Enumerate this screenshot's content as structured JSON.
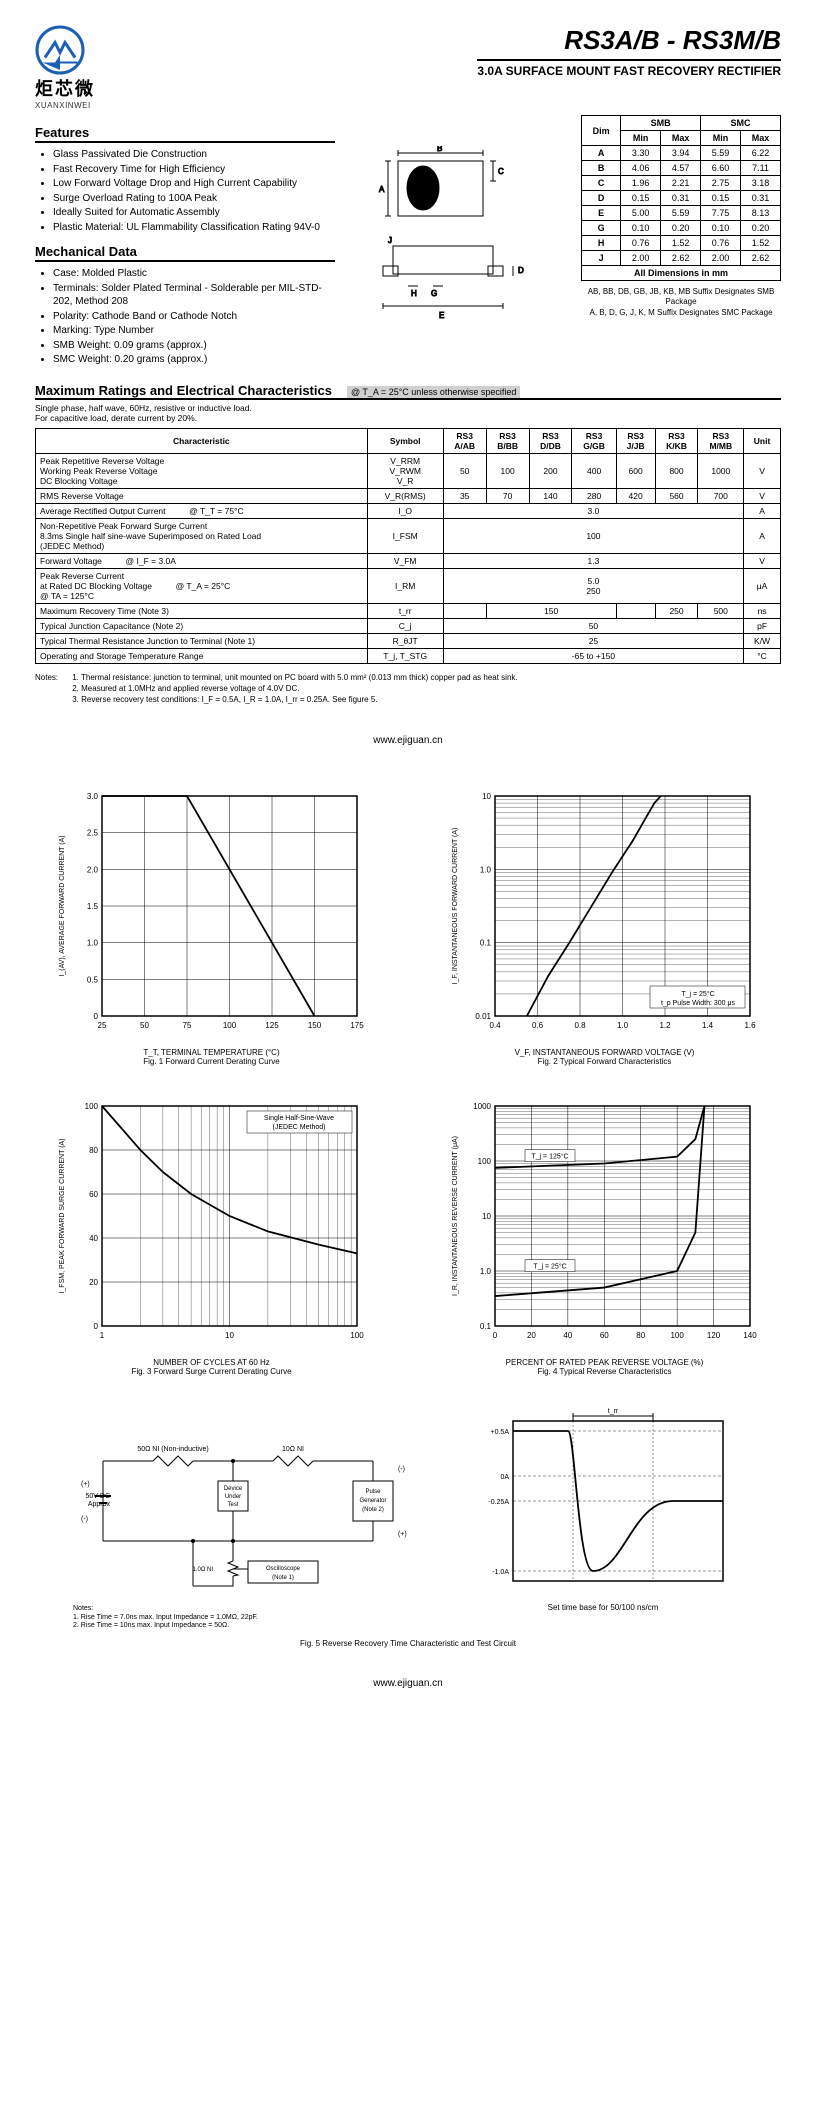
{
  "header": {
    "brand_cn": "炬芯微",
    "brand_en": "XUANXINWEI",
    "part_title": "RS3A/B - RS3M/B",
    "subtitle": "3.0A SURFACE MOUNT FAST RECOVERY RECTIFIER"
  },
  "features": {
    "heading": "Features",
    "items": [
      "Glass Passivated Die Construction",
      "Fast Recovery Time for High Efficiency",
      "Low Forward Voltage Drop and High Current Capability",
      "Surge Overload Rating to 100A Peak",
      "Ideally Suited for Automatic Assembly",
      "Plastic Material: UL Flammability Classification Rating 94V-0"
    ]
  },
  "mechanical": {
    "heading": "Mechanical Data",
    "items": [
      "Case: Molded Plastic",
      "Terminals: Solder Plated Terminal - Solderable per MIL-STD-202, Method 208",
      "Polarity: Cathode Band or Cathode Notch",
      "Marking: Type Number",
      "SMB Weight: 0.09 grams (approx.)",
      "SMC Weight: 0.20 grams (approx.)"
    ]
  },
  "dims": {
    "head_smb": "SMB",
    "head_smc": "SMC",
    "head_dim": "Dim",
    "head_min": "Min",
    "head_max": "Max",
    "rows": [
      {
        "d": "A",
        "a": "3.30",
        "b": "3.94",
        "c": "5.59",
        "e": "6.22"
      },
      {
        "d": "B",
        "a": "4.06",
        "b": "4.57",
        "c": "6.60",
        "e": "7.11"
      },
      {
        "d": "C",
        "a": "1.96",
        "b": "2.21",
        "c": "2.75",
        "e": "3.18"
      },
      {
        "d": "D",
        "a": "0.15",
        "b": "0.31",
        "c": "0.15",
        "e": "0.31"
      },
      {
        "d": "E",
        "a": "5.00",
        "b": "5.59",
        "c": "7.75",
        "e": "8.13"
      },
      {
        "d": "G",
        "a": "0.10",
        "b": "0.20",
        "c": "0.10",
        "e": "0.20"
      },
      {
        "d": "H",
        "a": "0.76",
        "b": "1.52",
        "c": "0.76",
        "e": "1.52"
      },
      {
        "d": "J",
        "a": "2.00",
        "b": "2.62",
        "c": "2.00",
        "e": "2.62"
      }
    ],
    "footer": "All Dimensions in mm"
  },
  "pkg_note_1": "AB, BB, DB, GB, JB, KB, MB Suffix Designates SMB Package",
  "pkg_note_2": "A, B, D, G, J, K, M Suffix Designates SMC Package",
  "maxratings": {
    "heading": "Maximum Ratings and Electrical Characteristics",
    "cond": "@ T_A = 25°C unless otherwise specified",
    "note": "Single phase, half wave, 60Hz, resistive or inductive load.\nFor capacitive load, derate current by 20%.",
    "headers": [
      "Characteristic",
      "Symbol",
      "RS3 A/AB",
      "RS3 B/BB",
      "RS3 D/DB",
      "RS3 G/GB",
      "RS3 J/JB",
      "RS3 K/KB",
      "RS3 M/MB",
      "Unit"
    ]
  },
  "char_rows": {
    "r1_l": "Peak Repetitive Reverse Voltage\nWorking Peak Reverse Voltage\nDC Blocking Voltage",
    "r1_s": "V_RRM\nV_RWM\nV_R",
    "r1": [
      "50",
      "100",
      "200",
      "400",
      "600",
      "800",
      "1000"
    ],
    "r1_u": "V",
    "r2_l": "RMS Reverse Voltage",
    "r2_s": "V_R(RMS)",
    "r2": [
      "35",
      "70",
      "140",
      "280",
      "420",
      "560",
      "700"
    ],
    "r2_u": "V",
    "r3_l": "Average Rectified Output Current",
    "r3_c": "@ T_T = 75°C",
    "r3_s": "I_O",
    "r3_v": "3.0",
    "r3_u": "A",
    "r4_l": "Non-Repetitive Peak Forward Surge Current\n8.3ms Single half sine-wave Superimposed on Rated Load\n(JEDEC Method)",
    "r4_s": "I_FSM",
    "r4_v": "100",
    "r4_u": "A",
    "r5_l": "Forward Voltage",
    "r5_c": "@ I_F = 3.0A",
    "r5_s": "V_FM",
    "r5_v": "1.3",
    "r5_u": "V",
    "r6_l": "Peak Reverse Current\nat Rated DC Blocking Voltage",
    "r6_c": "@ T_A = 25°C\n@ TA = 125°C",
    "r6_s": "I_RM",
    "r6_v": "5.0\n250",
    "r6_u": "μA",
    "r7_l": "Maximum Recovery Time (Note 3)",
    "r7_s": "t_rr",
    "r7": [
      "",
      "150",
      "",
      "",
      "250",
      "500"
    ],
    "r7_u": "ns",
    "r8_l": "Typical Junction Capacitance (Note 2)",
    "r8_s": "C_j",
    "r8_v": "50",
    "r8_u": "pF",
    "r9_l": "Typical Thermal Resistance Junction to Terminal (Note 1)",
    "r9_s": "R_θJT",
    "r9_v": "25",
    "r9_u": "K/W",
    "r10_l": "Operating and Storage Temperature Range",
    "r10_s": "T_j, T_STG",
    "r10_v": "-65 to +150",
    "r10_u": "°C"
  },
  "notes": {
    "label": "Notes:",
    "n1": "1. Thermal resistance: junction to terminal, unit mounted on PC board with 5.0 mm² (0.013 mm thick) copper pad as heat sink.",
    "n2": "2. Measured at 1.0MHz and applied reverse voltage of 4.0V DC.",
    "n3": "3. Reverse recovery test conditions: I_F = 0.5A, I_R = 1.0A, I_rr = 0.25A. See figure 5."
  },
  "url": "www.ejiguan.cn",
  "charts": {
    "fig1": {
      "xlabel": "T_T, TERMINAL TEMPERATURE (°C)",
      "caption": "Fig. 1  Forward Current Derating Curve",
      "ylabel": "I_(AV), AVERAGE FORWARD CURRENT (A)",
      "xticks": [
        "25",
        "50",
        "75",
        "100",
        "125",
        "150",
        "175"
      ],
      "yticks": [
        "0",
        "0.5",
        "1.0",
        "1.5",
        "2.0",
        "2.5",
        "3.0"
      ],
      "line": [
        [
          25,
          3.0
        ],
        [
          75,
          3.0
        ],
        [
          150,
          0
        ]
      ],
      "xlim": [
        25,
        175
      ],
      "ylim": [
        0,
        3.0
      ]
    },
    "fig2": {
      "xlabel": "V_F, INSTANTANEOUS FORWARD VOLTAGE (V)",
      "caption": "Fig. 2  Typical Forward Characteristics",
      "ylabel": "I_F, INSTANTANEOUS FORWARD CURRENT (A)",
      "xticks": [
        "0.4",
        "0.6",
        "0.8",
        "1.0",
        "1.2",
        "1.4",
        "1.6"
      ],
      "yticks": [
        "0.01",
        "0.1",
        "1.0",
        "10"
      ],
      "xlim": [
        0.4,
        1.6
      ],
      "ylim": [
        0.01,
        10
      ],
      "ylog": true,
      "line": [
        [
          0.55,
          0.01
        ],
        [
          0.65,
          0.035
        ],
        [
          0.75,
          0.1
        ],
        [
          0.85,
          0.3
        ],
        [
          0.95,
          0.9
        ],
        [
          1.05,
          2.5
        ],
        [
          1.1,
          4.5
        ],
        [
          1.15,
          8
        ],
        [
          1.18,
          10
        ]
      ],
      "ann1": "T_j = 25°C",
      "ann2": "t_p Pulse Width: 300 μs"
    },
    "fig3": {
      "xlabel": "NUMBER OF CYCLES AT 60 Hz",
      "caption": "Fig. 3  Forward Surge Current Derating Curve",
      "ylabel": "I_FSM, PEAK FORWARD SURGE CURRENT (A)",
      "xticks": [
        "1",
        "10",
        "100"
      ],
      "yticks": [
        "0",
        "20",
        "40",
        "60",
        "80",
        "100"
      ],
      "xlim": [
        1,
        100
      ],
      "ylim": [
        0,
        100
      ],
      "xlog": true,
      "line": [
        [
          1,
          100
        ],
        [
          2,
          80
        ],
        [
          3,
          70
        ],
        [
          5,
          60
        ],
        [
          10,
          50
        ],
        [
          20,
          43
        ],
        [
          50,
          37
        ],
        [
          100,
          33
        ]
      ],
      "ann": "Single Half-Sine-Wave\n(JEDEC Method)"
    },
    "fig4": {
      "xlabel": "PERCENT OF RATED PEAK REVERSE VOLTAGE (%)",
      "caption": "Fig. 4  Typical Reverse Characteristics",
      "ylabel": "I_R, INSTANTANEOUS REVERSE CURRENT (μA)",
      "xticks": [
        "0",
        "20",
        "40",
        "60",
        "80",
        "100",
        "120",
        "140"
      ],
      "yticks": [
        "0.1",
        "1.0",
        "10",
        "100",
        "1000"
      ],
      "xlim": [
        0,
        140
      ],
      "ylim": [
        0.1,
        1000
      ],
      "ylog": true,
      "line1": [
        [
          0,
          75
        ],
        [
          60,
          90
        ],
        [
          100,
          120
        ],
        [
          110,
          250
        ],
        [
          115,
          1000
        ]
      ],
      "line2": [
        [
          0,
          0.35
        ],
        [
          60,
          0.5
        ],
        [
          100,
          1.0
        ],
        [
          110,
          5
        ],
        [
          115,
          1000
        ]
      ],
      "ann1": "T_j = 125°C",
      "ann2": "T_j = 25°C"
    },
    "fig5": {
      "caption": "Fig. 5  Reverse Recovery Time Characteristic and Test Circuit",
      "r1": "50Ω NI (Non-inductive)",
      "r2": "10Ω NI",
      "dut": "Device\nUnder\nTest",
      "vdc": "50V DC\nApprox",
      "r3": "1.0Ω\nNI",
      "osc": "Oscilloscope\n(Note 1)",
      "pg": "Pulse\nGenerator\n(Note 2)",
      "wave_top": "+0.5A",
      "wave_mid": "0A",
      "wave_q": "-0.25A",
      "wave_bot": "-1.0A",
      "wave_trr": "t_rr",
      "wave_note": "Set time base for 50/100 ns/cm",
      "cnotes": "Notes:\n1. Rise Time = 7.0ns max. Input Impedance = 1.0MΩ, 22pF.\n2. Rise Time = 10ns max. Input Impedance = 50Ω."
    }
  }
}
